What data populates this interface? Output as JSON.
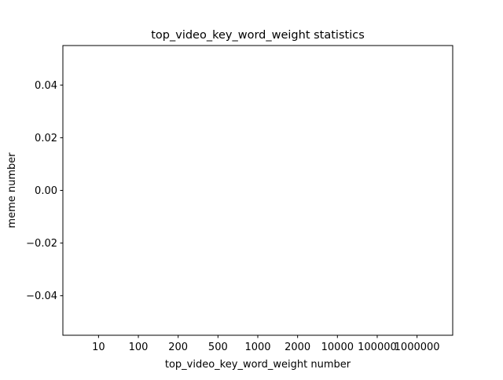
{
  "chart_data": {
    "type": "bar",
    "title": "top_video_key_word_weight statistics",
    "xlabel": "top_video_key_word_weight number",
    "ylabel": "meme number",
    "categories": [
      "10",
      "100",
      "200",
      "500",
      "1000",
      "2000",
      "10000",
      "100000",
      "1000000"
    ],
    "values": [
      0,
      0,
      0,
      0,
      0,
      0,
      0,
      0,
      0
    ],
    "ylim": [
      -0.055,
      0.055
    ],
    "yticks": [
      -0.04,
      -0.02,
      0.0,
      0.02,
      0.04
    ],
    "ytick_labels": [
      "−0.04",
      "−0.02",
      "0.00",
      "0.02",
      "0.04"
    ],
    "grid": false,
    "legend": "none",
    "colors": {
      "axes": "#000000",
      "bar": "#1f77b4",
      "background": "#ffffff"
    }
  }
}
